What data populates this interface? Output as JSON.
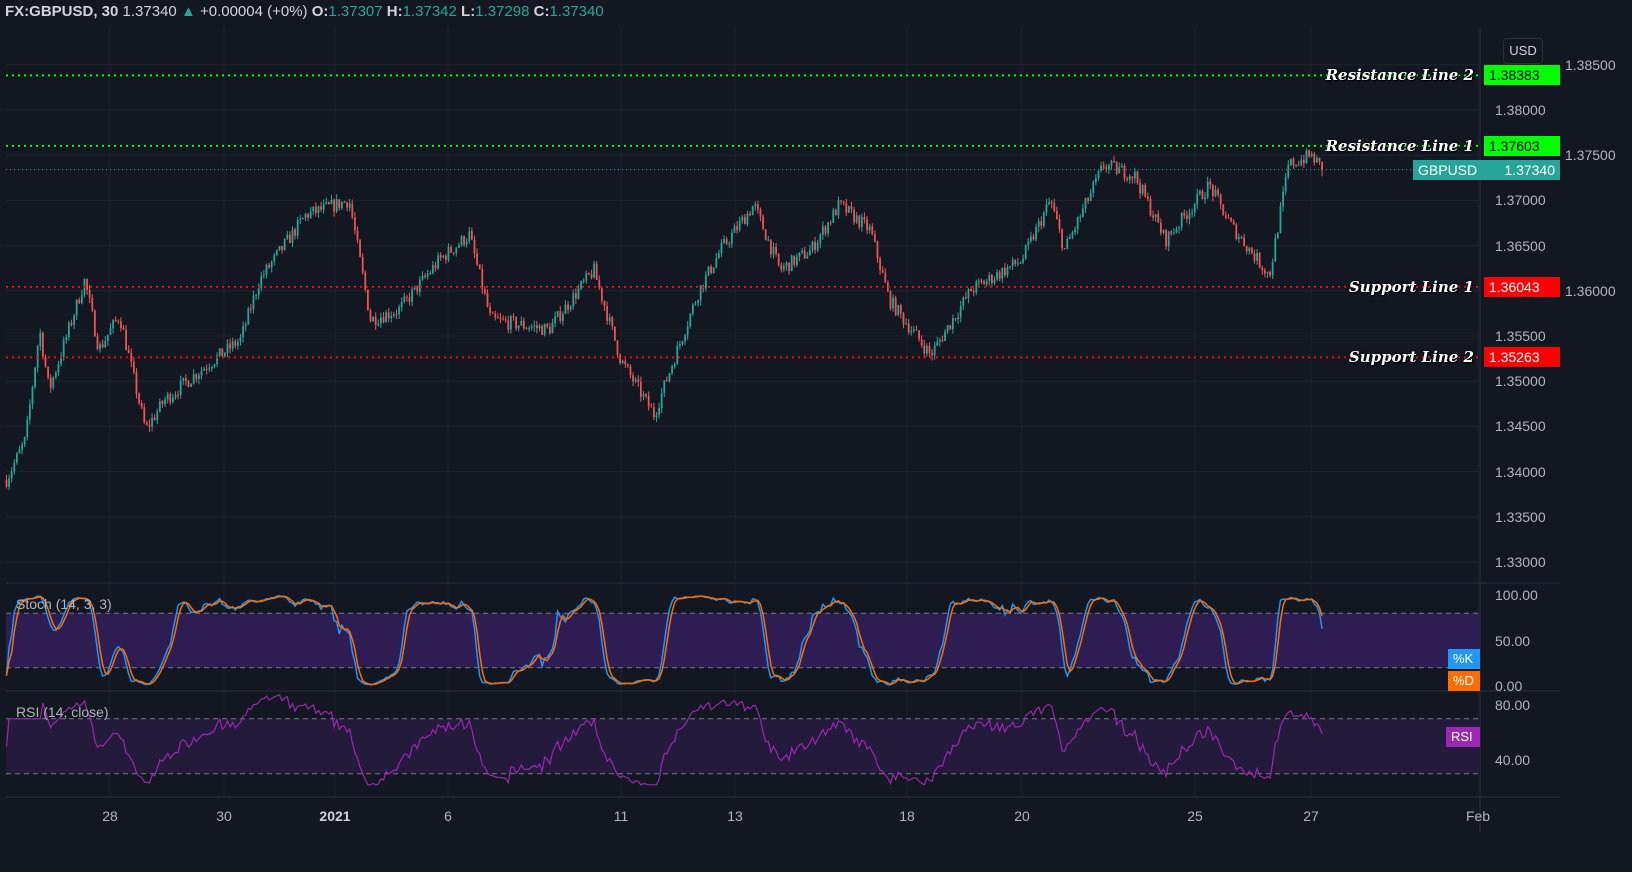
{
  "header": {
    "symbol": "FX:GBPUSD, 30",
    "last": "1.37340",
    "change_icon": "triangle-up-icon",
    "change": "+0.00004 (+0%)",
    "o_label": "O:",
    "o": "1.37307",
    "h_label": "H:",
    "h": "1.37342",
    "l_label": "L:",
    "l": "1.37298",
    "c_label": "C:",
    "c": "1.37340"
  },
  "currency": "USD",
  "current_price": {
    "symbol": "GBPUSD",
    "value": "1.37340",
    "color": "#26a69a"
  },
  "colors": {
    "background": "#131722",
    "up": "#26a69a",
    "down": "#ef5350",
    "stoch_k": "#2196f3",
    "stoch_d": "#ff6d00",
    "rsi": "#9c27b0"
  },
  "chart_data": {
    "type": "candlestick",
    "symbol": "FX:GBPUSD",
    "interval": "30",
    "ylim": [
      1.3275,
      1.3875
    ],
    "price_ticks": [
      "1.38500",
      "1.38000",
      "1.37500",
      "1.37000",
      "1.36500",
      "1.36000",
      "1.35500",
      "1.35000",
      "1.34500",
      "1.34000",
      "1.33500",
      "1.33000"
    ],
    "time_ticks": [
      "28",
      "30",
      "2021",
      "6",
      "11",
      "13",
      "18",
      "20",
      "25",
      "27",
      "Feb"
    ],
    "price_path": [
      [
        "2020-12-23 04:00",
        1.3391
      ],
      [
        "2020-12-23 12:00",
        1.3435
      ],
      [
        "2020-12-23 18:00",
        1.3557
      ],
      [
        "2020-12-23 22:00",
        1.349
      ],
      [
        "2020-12-24 13:00",
        1.3612
      ],
      [
        "2020-12-24 19:00",
        1.3535
      ],
      [
        "2020-12-28 04:00",
        1.3573
      ],
      [
        "2020-12-28 15:00",
        1.3446
      ],
      [
        "2020-12-28 23:00",
        1.3479
      ],
      [
        "2020-12-29 14:00",
        1.3512
      ],
      [
        "2020-12-30 07:00",
        1.3546
      ],
      [
        "2020-12-30 15:00",
        1.3612
      ],
      [
        "2020-12-31 11:00",
        1.3684
      ],
      [
        "2021-01-04 06:00",
        1.37
      ],
      [
        "2021-01-04 15:00",
        1.3568
      ],
      [
        "2021-01-05 03:00",
        1.3579
      ],
      [
        "2021-01-05 20:00",
        1.3634
      ],
      [
        "2021-01-06 09:00",
        1.3662
      ],
      [
        "2021-01-06 18:00",
        1.3568
      ],
      [
        "2021-01-07 18:00",
        1.3557
      ],
      [
        "2021-01-08 13:00",
        1.3623
      ],
      [
        "2021-01-11 00:00",
        1.3523
      ],
      [
        "2021-01-11 14:00",
        1.3463
      ],
      [
        "2021-01-11 23:00",
        1.3529
      ],
      [
        "2021-01-12 09:00",
        1.3601
      ],
      [
        "2021-01-12 18:00",
        1.3645
      ],
      [
        "2021-01-13 08:00",
        1.3695
      ],
      [
        "2021-01-13 19:00",
        1.3623
      ],
      [
        "2021-01-14 08:00",
        1.3645
      ],
      [
        "2021-01-14 20:00",
        1.3695
      ],
      [
        "2021-01-15 09:00",
        1.3667
      ],
      [
        "2021-01-15 17:00",
        1.359
      ],
      [
        "2021-01-18 10:00",
        1.3529
      ],
      [
        "2021-01-19 03:00",
        1.3601
      ],
      [
        "2021-01-20 00:00",
        1.3634
      ],
      [
        "2021-01-20 12:00",
        1.37
      ],
      [
        "2021-01-20 18:00",
        1.3645
      ],
      [
        "2021-01-21 10:00",
        1.3739
      ],
      [
        "2021-01-21 23:00",
        1.3728
      ],
      [
        "2021-01-22 12:00",
        1.3656
      ],
      [
        "2021-01-25 06:00",
        1.3717
      ],
      [
        "2021-01-25 15:00",
        1.3673
      ],
      [
        "2021-01-26 07:00",
        1.3617
      ],
      [
        "2021-01-26 15:00",
        1.3739
      ],
      [
        "2021-01-27 00:00",
        1.375
      ],
      [
        "2021-01-27 05:00",
        1.3734
      ]
    ],
    "horizontal_lines": [
      {
        "label": "Resistance Line 2",
        "price": "1.38383",
        "color": "#00ff00"
      },
      {
        "label": "Resistance Line 1",
        "price": "1.37603",
        "color": "#00ff00"
      },
      {
        "label": "Support Line 1",
        "price": "1.36043",
        "color": "#ff0000"
      },
      {
        "label": "Support Line 2",
        "price": "1.35263",
        "color": "#ff0000"
      }
    ],
    "stoch": {
      "title": "Stoch (14, 3, 3)",
      "ticks": [
        "100.00",
        "50.00",
        "0.00"
      ],
      "bands": [
        80,
        20
      ],
      "k_label": "%K",
      "d_label": "%D"
    },
    "rsi": {
      "title": "RSI (14, close)",
      "ticks": [
        "80.00",
        "40.00"
      ],
      "bands": [
        70,
        30
      ],
      "label": "RSI"
    }
  }
}
